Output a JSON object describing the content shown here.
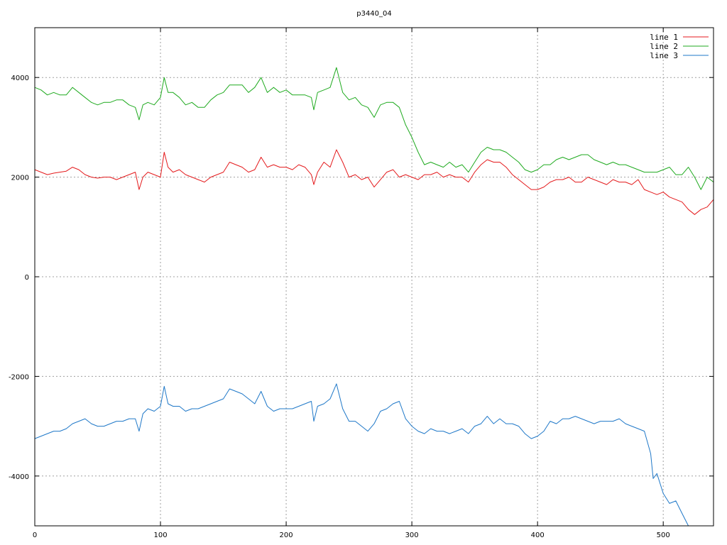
{
  "chart_data": {
    "type": "line",
    "title": "p3440_04",
    "xlabel": "",
    "ylabel": "",
    "xlim": [
      0,
      540
    ],
    "ylim": [
      -5000,
      5000
    ],
    "grid": true,
    "legend_position": "top-right",
    "x_ticks": [
      0,
      100,
      200,
      300,
      400,
      500
    ],
    "y_ticks": [
      -4000,
      -2000,
      0,
      2000,
      4000
    ],
    "x_tick_labels": [
      "0",
      "100",
      "200",
      "300",
      "400",
      "500"
    ],
    "y_tick_labels": [
      "-4000",
      "-2000",
      "0",
      "2000",
      "4000"
    ],
    "series": [
      {
        "name": "line 1",
        "color": "#e41a1c",
        "x": [
          0,
          5,
          10,
          15,
          20,
          25,
          30,
          35,
          40,
          45,
          50,
          55,
          60,
          65,
          70,
          75,
          80,
          83,
          86,
          90,
          95,
          100,
          103,
          106,
          110,
          115,
          120,
          125,
          130,
          135,
          140,
          145,
          150,
          155,
          160,
          165,
          170,
          175,
          180,
          185,
          190,
          195,
          200,
          205,
          210,
          215,
          220,
          222,
          225,
          230,
          235,
          240,
          245,
          250,
          255,
          260,
          265,
          270,
          275,
          280,
          285,
          290,
          295,
          300,
          305,
          310,
          315,
          320,
          325,
          330,
          335,
          340,
          345,
          350,
          355,
          360,
          365,
          370,
          375,
          380,
          385,
          390,
          395,
          400,
          405,
          410,
          415,
          420,
          425,
          430,
          435,
          440,
          445,
          450,
          455,
          460,
          465,
          470,
          475,
          480,
          485,
          490,
          495,
          500,
          505,
          510,
          515,
          520,
          525,
          530,
          535,
          540
        ],
        "y": [
          2150,
          2100,
          2050,
          2080,
          2100,
          2120,
          2200,
          2150,
          2050,
          2000,
          1980,
          2000,
          2000,
          1950,
          2000,
          2050,
          2100,
          1750,
          2000,
          2100,
          2050,
          2000,
          2500,
          2200,
          2100,
          2150,
          2050,
          2000,
          1950,
          1900,
          2000,
          2050,
          2100,
          2300,
          2250,
          2200,
          2100,
          2150,
          2400,
          2200,
          2250,
          2200,
          2200,
          2150,
          2250,
          2200,
          2050,
          1850,
          2100,
          2300,
          2200,
          2550,
          2300,
          2000,
          2050,
          1950,
          2000,
          1800,
          1950,
          2100,
          2150,
          2000,
          2050,
          2000,
          1950,
          2050,
          2050,
          2100,
          2000,
          2050,
          2000,
          2000,
          1900,
          2100,
          2250,
          2350,
          2300,
          2300,
          2200,
          2050,
          1950,
          1850,
          1750,
          1750,
          1800,
          1900,
          1950,
          1950,
          2000,
          1900,
          1900,
          2000,
          1950,
          1900,
          1850,
          1950,
          1900,
          1900,
          1850,
          1950,
          1750,
          1700,
          1650,
          1700,
          1600,
          1550,
          1500,
          1350,
          1250,
          1350,
          1400,
          1550
        ]
      },
      {
        "name": "line 2",
        "color": "#1faa1f",
        "x": [
          0,
          5,
          10,
          15,
          20,
          25,
          30,
          35,
          40,
          45,
          50,
          55,
          60,
          65,
          70,
          75,
          80,
          83,
          86,
          90,
          95,
          100,
          103,
          106,
          110,
          115,
          120,
          125,
          130,
          135,
          140,
          145,
          150,
          155,
          160,
          165,
          170,
          175,
          180,
          185,
          190,
          195,
          200,
          205,
          210,
          215,
          220,
          222,
          225,
          230,
          235,
          240,
          245,
          250,
          255,
          260,
          265,
          270,
          275,
          280,
          285,
          290,
          295,
          300,
          305,
          310,
          315,
          320,
          325,
          330,
          335,
          340,
          345,
          350,
          355,
          360,
          365,
          370,
          375,
          380,
          385,
          390,
          395,
          400,
          405,
          410,
          415,
          420,
          425,
          430,
          435,
          440,
          445,
          450,
          455,
          460,
          465,
          470,
          475,
          480,
          485,
          490,
          495,
          500,
          505,
          510,
          515,
          520,
          525,
          530,
          535,
          540
        ],
        "y": [
          3800,
          3750,
          3650,
          3700,
          3650,
          3650,
          3800,
          3700,
          3600,
          3500,
          3450,
          3500,
          3500,
          3550,
          3550,
          3450,
          3400,
          3150,
          3450,
          3500,
          3450,
          3600,
          4000,
          3700,
          3700,
          3600,
          3450,
          3500,
          3400,
          3400,
          3550,
          3650,
          3700,
          3850,
          3850,
          3850,
          3700,
          3800,
          4000,
          3700,
          3800,
          3700,
          3750,
          3650,
          3650,
          3650,
          3600,
          3350,
          3700,
          3750,
          3800,
          4200,
          3700,
          3550,
          3600,
          3450,
          3400,
          3200,
          3450,
          3500,
          3500,
          3400,
          3050,
          2800,
          2500,
          2250,
          2300,
          2250,
          2200,
          2300,
          2200,
          2250,
          2100,
          2300,
          2500,
          2600,
          2550,
          2550,
          2500,
          2400,
          2300,
          2150,
          2100,
          2150,
          2250,
          2250,
          2350,
          2400,
          2350,
          2400,
          2450,
          2450,
          2350,
          2300,
          2250,
          2300,
          2250,
          2250,
          2200,
          2150,
          2100,
          2100,
          2100,
          2150,
          2200,
          2050,
          2050,
          2200,
          2000,
          1750,
          2000,
          1900
        ]
      },
      {
        "name": "line 3",
        "color": "#1f78c8",
        "x": [
          0,
          5,
          10,
          15,
          20,
          25,
          30,
          35,
          40,
          45,
          50,
          55,
          60,
          65,
          70,
          75,
          80,
          83,
          86,
          90,
          95,
          100,
          103,
          106,
          110,
          115,
          120,
          125,
          130,
          135,
          140,
          145,
          150,
          155,
          160,
          165,
          170,
          175,
          180,
          185,
          190,
          195,
          200,
          205,
          210,
          215,
          220,
          222,
          225,
          230,
          235,
          240,
          245,
          250,
          255,
          260,
          265,
          270,
          275,
          280,
          285,
          290,
          295,
          300,
          305,
          310,
          315,
          320,
          325,
          330,
          335,
          340,
          345,
          350,
          355,
          360,
          365,
          370,
          375,
          380,
          385,
          390,
          395,
          400,
          405,
          410,
          415,
          420,
          425,
          430,
          435,
          440,
          445,
          450,
          455,
          460,
          465,
          470,
          475,
          480,
          485,
          490,
          492,
          495,
          500,
          505,
          510,
          515,
          520
        ],
        "y": [
          -3250,
          -3200,
          -3150,
          -3100,
          -3100,
          -3050,
          -2950,
          -2900,
          -2850,
          -2950,
          -3000,
          -3000,
          -2950,
          -2900,
          -2900,
          -2850,
          -2850,
          -3100,
          -2750,
          -2650,
          -2700,
          -2600,
          -2200,
          -2550,
          -2600,
          -2600,
          -2700,
          -2650,
          -2650,
          -2600,
          -2550,
          -2500,
          -2450,
          -2250,
          -2300,
          -2350,
          -2450,
          -2550,
          -2300,
          -2600,
          -2700,
          -2650,
          -2650,
          -2650,
          -2600,
          -2550,
          -2500,
          -2900,
          -2600,
          -2550,
          -2450,
          -2150,
          -2650,
          -2900,
          -2900,
          -3000,
          -3100,
          -2950,
          -2700,
          -2650,
          -2550,
          -2500,
          -2850,
          -3000,
          -3100,
          -3150,
          -3050,
          -3100,
          -3100,
          -3150,
          -3100,
          -3050,
          -3150,
          -3000,
          -2950,
          -2800,
          -2950,
          -2850,
          -2950,
          -2950,
          -3000,
          -3150,
          -3250,
          -3200,
          -3100,
          -2900,
          -2950,
          -2850,
          -2850,
          -2800,
          -2850,
          -2900,
          -2950,
          -2900,
          -2900,
          -2900,
          -2850,
          -2950,
          -3000,
          -3050,
          -3100,
          -3550,
          -4050,
          -3950,
          -4350,
          -4550,
          -4500,
          -4750,
          -5000
        ]
      }
    ]
  }
}
